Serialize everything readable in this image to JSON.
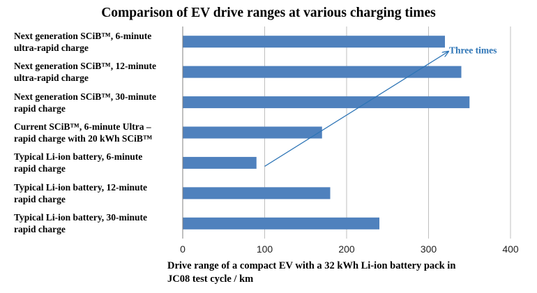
{
  "chart_data": {
    "type": "bar",
    "orientation": "horizontal",
    "title": "Comparison of EV drive ranges at various charging times",
    "categories": [
      [
        "Next generation SCiB™, 6-minute",
        "ultra-rapid charge"
      ],
      [
        "Next generation SCiB™, 12-minute",
        "ultra-rapid charge"
      ],
      [
        "Next generation SCiB™, 30-minute",
        "rapid charge"
      ],
      [
        "Current SCiB™, 6-minute Ultra –",
        "rapid charge with 20 kWh SCiB™"
      ],
      [
        "Typical Li-ion battery, 6-minute",
        "rapid charge"
      ],
      [
        "Typical Li-ion battery, 12-minute",
        "rapid charge"
      ],
      [
        "Typical Li-ion battery, 30-minute",
        "rapid charge"
      ]
    ],
    "values": [
      320,
      340,
      350,
      170,
      90,
      180,
      240
    ],
    "xlabel": [
      "Drive range of a compact EV with a 32 kWh Li-ion battery pack in",
      "JC08 test cycle / km"
    ],
    "xlim": [
      0,
      400
    ],
    "xticks": [
      0,
      100,
      200,
      300,
      400
    ],
    "grid": "vertical",
    "bar_color": "#4f81bd",
    "annotation": {
      "text": "Three times",
      "color": "#2e75b6",
      "arrow_from": {
        "value": 100,
        "category": 4
      },
      "arrow_to": {
        "value": 320,
        "category": 0
      }
    }
  }
}
